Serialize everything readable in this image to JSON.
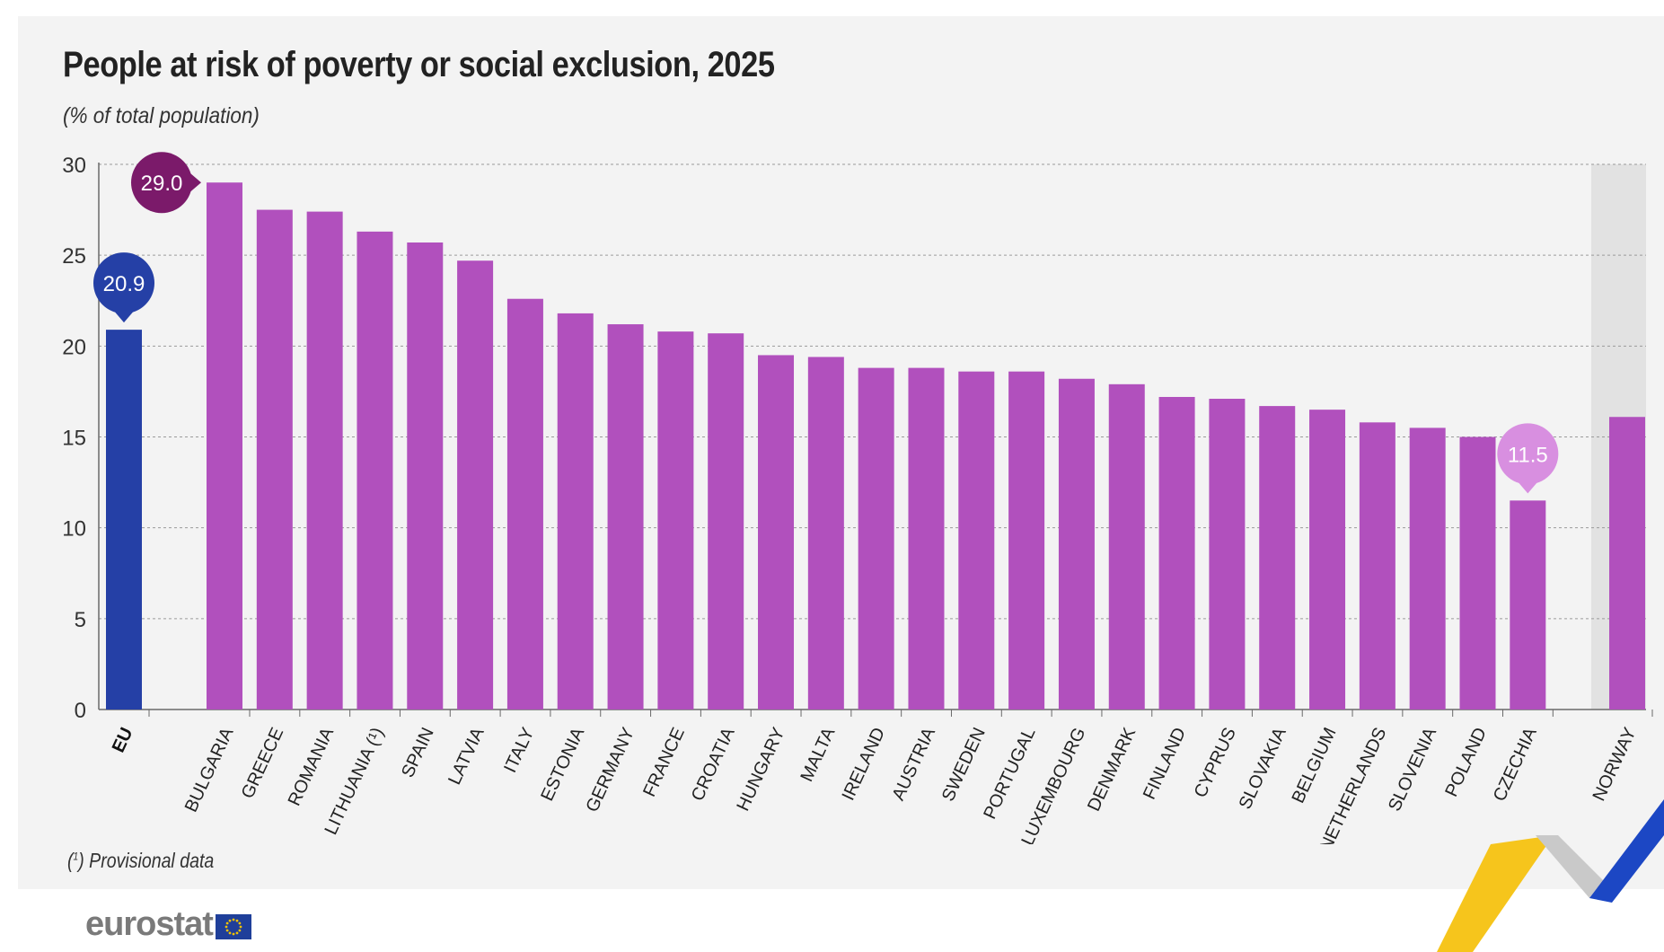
{
  "title": "People at risk of poverty or social exclusion, 2025",
  "subtitle": "(% of total population)",
  "footnote": {
    "marker": "1",
    "text": "Provisional data"
  },
  "logo": {
    "text": "eurostat",
    "icon": "eu-flag-icon"
  },
  "colors": {
    "eu": "#2540a6",
    "countries": "#b150bd",
    "non_eu": "#b150bd",
    "highlight_max": "#7b1a6a",
    "highlight_min": "#d88fe0",
    "eu_callout": "#2540a6",
    "non_eu_band": "#e2e2e2",
    "panel": "#f3f3f3"
  },
  "chart_data": {
    "type": "bar",
    "title": "People at risk of poverty or social exclusion, 2025",
    "subtitle": "(% of total population)",
    "ylim": [
      0,
      30
    ],
    "yticks": [
      0,
      5,
      10,
      15,
      20,
      25,
      30
    ],
    "grid": true,
    "categories": [
      "EU",
      "BULGARIA",
      "GREECE",
      "ROMANIA",
      "LITHUANIA (¹)",
      "SPAIN",
      "LATVIA",
      "ITALY",
      "ESTONIA",
      "GERMANY",
      "FRANCE",
      "CROATIA",
      "HUNGARY",
      "MALTA",
      "IRELAND",
      "AUSTRIA",
      "SWEDEN",
      "PORTUGAL",
      "LUXEMBOURG",
      "DENMARK",
      "FINLAND",
      "CYPRUS",
      "SLOVAKIA",
      "BELGIUM",
      "NETHERLANDS",
      "SLOVENIA",
      "POLAND",
      "CZECHIA",
      "NORWAY"
    ],
    "values": [
      20.9,
      29.0,
      27.5,
      27.4,
      26.3,
      25.7,
      24.7,
      22.6,
      21.8,
      21.2,
      20.8,
      20.7,
      19.5,
      19.4,
      18.8,
      18.8,
      18.6,
      18.6,
      18.2,
      17.9,
      17.2,
      17.1,
      16.7,
      16.5,
      15.8,
      15.5,
      15.0,
      11.5,
      16.1
    ],
    "callouts": [
      {
        "category": "EU",
        "label": "20.9"
      },
      {
        "category": "BULGARIA",
        "label": "29.0"
      },
      {
        "category": "CZECHIA",
        "label": "11.5"
      }
    ]
  }
}
